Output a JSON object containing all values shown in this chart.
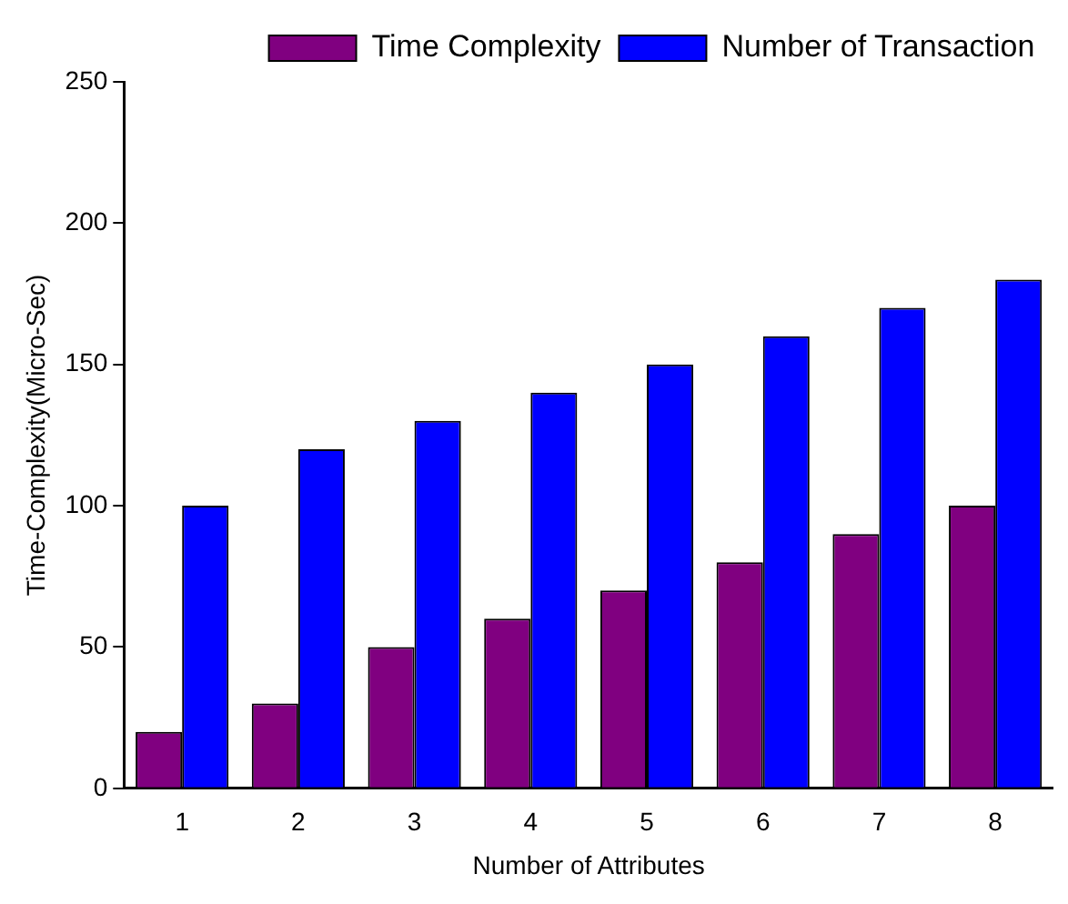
{
  "chart_data": {
    "type": "bar",
    "xlabel": "Number of Attributes",
    "ylabel": "Time-Complexity(Micro-Sec)",
    "categories": [
      "1",
      "2",
      "3",
      "4",
      "5",
      "6",
      "7",
      "8"
    ],
    "series": [
      {
        "name": "Time Complexity",
        "color": "#800080",
        "values": [
          20,
          30,
          50,
          60,
          70,
          80,
          90,
          100
        ]
      },
      {
        "name": "Number of Transaction",
        "color": "#0000ff",
        "values": [
          100,
          120,
          130,
          140,
          150,
          160,
          170,
          180
        ]
      }
    ],
    "ylim": [
      0,
      250
    ],
    "yticks": [
      0,
      50,
      100,
      150,
      200,
      250
    ],
    "grid": false,
    "legend": "top right"
  }
}
